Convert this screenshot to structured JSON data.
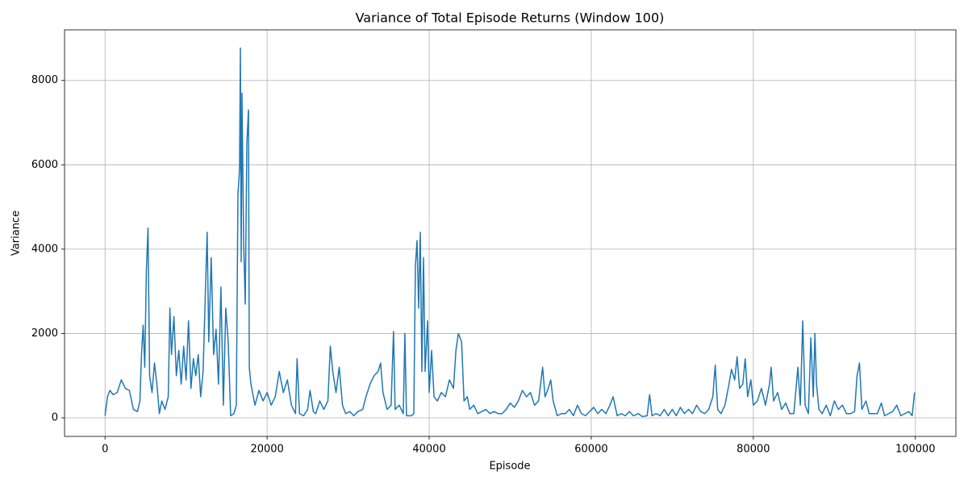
{
  "chart_data": {
    "type": "line",
    "title": "Variance of Total Episode Returns (Window 100)",
    "xlabel": "Episode",
    "ylabel": "Variance",
    "color": "#1f77b4",
    "grid": true,
    "xlim": [
      -5000,
      105000
    ],
    "ylim": [
      -440,
      9200
    ],
    "xticks": [
      0,
      20000,
      40000,
      60000,
      80000,
      100000
    ],
    "yticks": [
      0,
      2000,
      4000,
      6000,
      8000
    ],
    "x": [
      0,
      300,
      600,
      1000,
      1500,
      2000,
      2500,
      3000,
      3500,
      4000,
      4300,
      4500,
      4700,
      4900,
      5100,
      5300,
      5500,
      5800,
      6100,
      6400,
      6700,
      7000,
      7400,
      7800,
      8000,
      8200,
      8500,
      8800,
      9100,
      9400,
      9700,
      10000,
      10300,
      10600,
      10900,
      11200,
      11500,
      11800,
      12100,
      12400,
      12600,
      12800,
      13100,
      13400,
      13700,
      14000,
      14300,
      14600,
      14900,
      15200,
      15500,
      15900,
      16200,
      16400,
      16600,
      16700,
      16800,
      16900,
      17100,
      17300,
      17500,
      17700,
      17800,
      18000,
      18500,
      19000,
      19500,
      20000,
      20500,
      21000,
      21500,
      22000,
      22500,
      23000,
      23500,
      23700,
      24000,
      24500,
      25000,
      25300,
      25700,
      26000,
      26500,
      27000,
      27500,
      27800,
      28100,
      28500,
      28900,
      29300,
      29700,
      30200,
      30700,
      31200,
      31800,
      32200,
      32700,
      33200,
      33700,
      34000,
      34300,
      34800,
      35300,
      35600,
      35800,
      36300,
      36800,
      37000,
      37200,
      37800,
      38100,
      38300,
      38500,
      38700,
      38900,
      39100,
      39300,
      39500,
      39800,
      40000,
      40300,
      40600,
      41000,
      41500,
      42000,
      42500,
      43000,
      43300,
      43600,
      44000,
      44300,
      44700,
      45000,
      45500,
      46000,
      46500,
      47000,
      47500,
      48000,
      48500,
      49000,
      49500,
      50000,
      50500,
      51000,
      51500,
      52000,
      52500,
      53000,
      53500,
      54000,
      54300,
      54700,
      55000,
      55300,
      55800,
      56300,
      56800,
      57300,
      57800,
      58300,
      58800,
      59300,
      59800,
      60300,
      60800,
      61300,
      61800,
      62300,
      62700,
      63200,
      63700,
      64200,
      64700,
      65200,
      65800,
      66300,
      66900,
      67200,
      67500,
      68000,
      68500,
      69000,
      69500,
      70000,
      70500,
      71000,
      71500,
      72000,
      72500,
      73000,
      73500,
      74000,
      74500,
      75000,
      75300,
      75600,
      76000,
      76500,
      77000,
      77300,
      77700,
      78000,
      78300,
      78700,
      79000,
      79300,
      79700,
      80000,
      80500,
      81000,
      81500,
      82000,
      82200,
      82500,
      83000,
      83500,
      84000,
      84500,
      85000,
      85500,
      85800,
      86100,
      86400,
      86800,
      87100,
      87400,
      87600,
      87800,
      88100,
      88500,
      89000,
      89500,
      90000,
      90500,
      91000,
      91500,
      92000,
      92500,
      92800,
      93100,
      93400,
      93900,
      94300,
      94800,
      95300,
      95800,
      96200,
      96700,
      97200,
      97700,
      98200,
      98700,
      99200,
      99600,
      99900
    ],
    "values": [
      50,
      500,
      650,
      550,
      600,
      900,
      700,
      650,
      200,
      150,
      400,
      1500,
      2200,
      1200,
      3500,
      4500,
      1000,
      600,
      1300,
      800,
      100,
      400,
      200,
      500,
      2600,
      1500,
      2400,
      1000,
      1600,
      800,
      1700,
      900,
      2300,
      700,
      1400,
      1000,
      1500,
      500,
      1100,
      3100,
      4400,
      1800,
      3800,
      1500,
      2100,
      800,
      3100,
      300,
      2600,
      1800,
      50,
      100,
      300,
      5300,
      5900,
      8770,
      3700,
      7700,
      4200,
      2700,
      6500,
      7300,
      1200,
      800,
      300,
      650,
      400,
      600,
      300,
      500,
      1100,
      600,
      900,
      300,
      100,
      1400,
      100,
      50,
      200,
      650,
      150,
      100,
      400,
      200,
      400,
      1700,
      1100,
      600,
      1200,
      300,
      100,
      150,
      50,
      150,
      200,
      500,
      800,
      1000,
      1100,
      1300,
      600,
      200,
      300,
      2050,
      200,
      300,
      100,
      2000,
      50,
      50,
      100,
      3600,
      4200,
      2600,
      4400,
      1100,
      3800,
      1100,
      2300,
      600,
      1600,
      500,
      400,
      600,
      500,
      900,
      700,
      1600,
      2000,
      1800,
      400,
      500,
      200,
      300,
      100,
      150,
      200,
      100,
      150,
      100,
      100,
      200,
      350,
      250,
      400,
      650,
      500,
      600,
      300,
      400,
      1200,
      500,
      700,
      900,
      400,
      50,
      100,
      100,
      200,
      50,
      300,
      100,
      50,
      150,
      250,
      100,
      200,
      100,
      300,
      500,
      50,
      100,
      50,
      150,
      50,
      100,
      30,
      50,
      550,
      50,
      100,
      50,
      200,
      50,
      200,
      50,
      250,
      100,
      200,
      100,
      300,
      150,
      100,
      200,
      500,
      1250,
      200,
      100,
      300,
      800,
      1150,
      900,
      1450,
      700,
      800,
      1400,
      500,
      900,
      300,
      400,
      700,
      300,
      800,
      1200,
      400,
      600,
      200,
      350,
      100,
      100,
      1200,
      300,
      2300,
      300,
      100,
      1900,
      500,
      2000,
      800,
      200,
      100,
      300,
      50,
      400,
      200,
      300,
      100,
      100,
      150,
      1000,
      1300,
      200,
      400,
      100,
      100,
      100,
      350,
      50,
      100,
      150,
      300,
      50,
      100,
      150,
      50,
      600
    ]
  }
}
